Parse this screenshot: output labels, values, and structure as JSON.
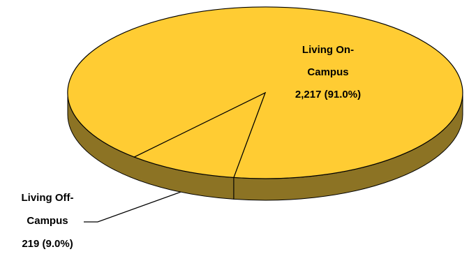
{
  "chart_data": {
    "type": "pie",
    "style": "3d",
    "slices": [
      {
        "label_lines": [
          "Living On-",
          "Campus",
          "2,217 (91.0%)"
        ],
        "value": 2217,
        "percent": 91.0,
        "color": "#FFCC33"
      },
      {
        "label_lines": [
          "Living Off-",
          "Campus",
          "219 (9.0%)"
        ],
        "value": 219,
        "percent": 9.0,
        "color": "#FFCC33"
      }
    ],
    "colors": {
      "top": "#FFCC33",
      "side": "#8C7324",
      "outline": "#000000"
    }
  }
}
